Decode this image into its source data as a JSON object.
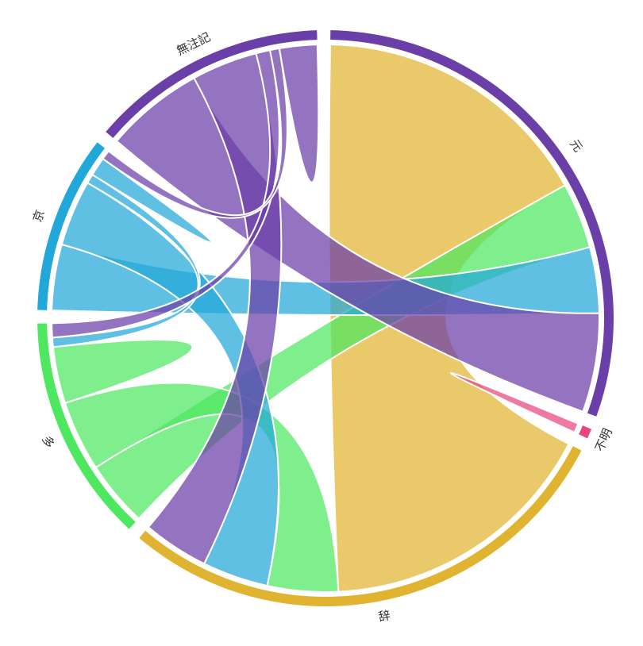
{
  "chart_data": {
    "type": "chord",
    "groups": [
      {
        "name": "元",
        "color": "#6b3fa8"
      },
      {
        "name": "不明",
        "color": "#e8467c"
      },
      {
        "name": "辞",
        "color": "#e0b430"
      },
      {
        "name": "多",
        "color": "#4ee860"
      },
      {
        "name": "京",
        "color": "#22a8d8"
      },
      {
        "name": "無注記",
        "color": "#6b3fa8"
      }
    ],
    "matrix": [
      [
        0,
        0,
        60,
        14,
        14,
        21
      ],
      [
        0,
        2,
        0,
        0,
        0,
        0
      ],
      [
        60,
        0,
        0,
        15,
        14,
        14
      ],
      [
        14,
        0,
        15,
        12,
        2,
        3
      ],
      [
        14,
        0,
        14,
        2,
        4,
        2
      ],
      [
        21,
        0,
        14,
        3,
        2,
        8
      ]
    ]
  }
}
